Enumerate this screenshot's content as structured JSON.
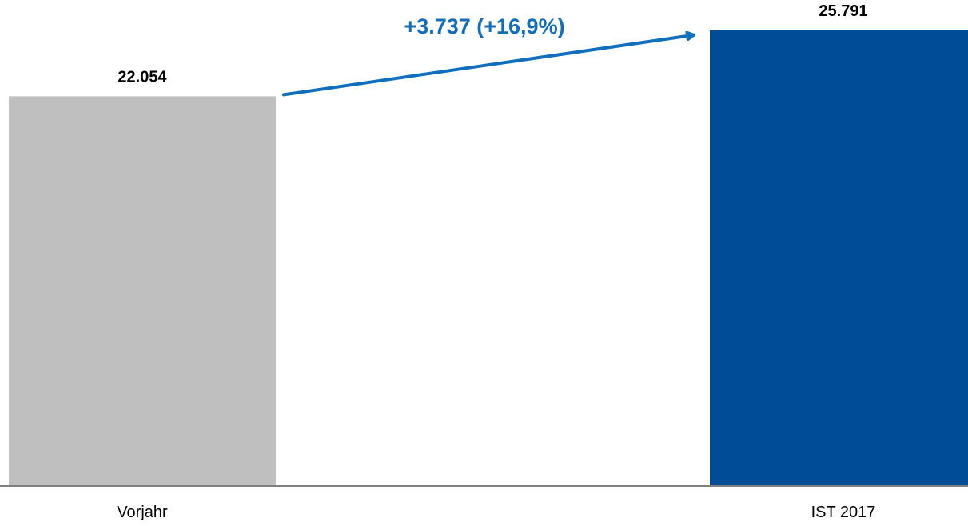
{
  "chart_data": {
    "type": "bar",
    "categories": [
      "Vorjahr",
      "IST 2017"
    ],
    "values": [
      22054,
      25791
    ],
    "value_labels": [
      "22.054",
      "25.791"
    ],
    "bar_colors": [
      "#bfbfbf",
      "#004c97"
    ],
    "ylim": [
      0,
      27500
    ],
    "grid": false,
    "legend": "none",
    "annotation": {
      "text": "+3.737 (+16,9%)",
      "from_category": "Vorjahr",
      "to_category": "IST 2017",
      "color": "#0f6fbd"
    },
    "axis_color": "#7f7f7f"
  }
}
